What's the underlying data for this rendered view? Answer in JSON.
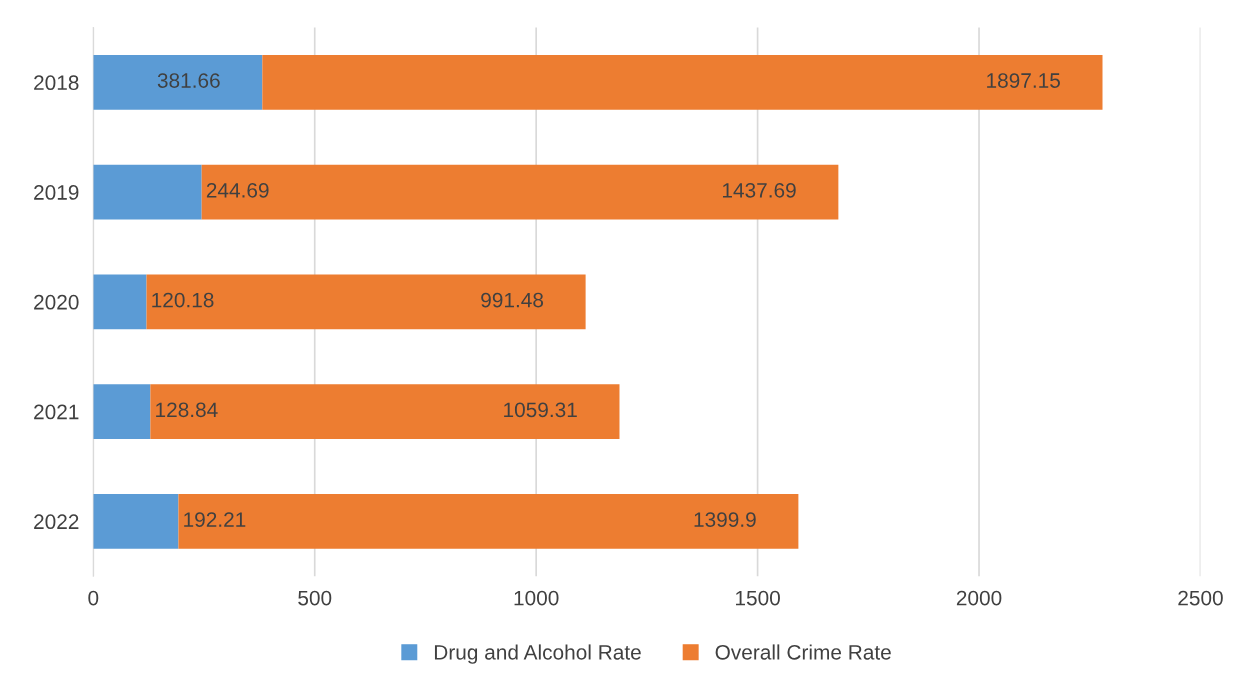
{
  "chart_data": {
    "type": "bar",
    "orientation": "horizontal",
    "stacked": true,
    "categories": [
      "2018",
      "2019",
      "2020",
      "2021",
      "2022"
    ],
    "series": [
      {
        "name": "Drug and Alcohol Rate",
        "color": "#5b9bd5",
        "values": [
          381.66,
          244.69,
          120.18,
          128.84,
          192.21
        ]
      },
      {
        "name": "Overall Crime Rate",
        "color": "#ed7d31",
        "values": [
          1897.15,
          1437.69,
          991.48,
          1059.31,
          1399.9
        ]
      }
    ],
    "xlim": [
      0,
      2500
    ],
    "xticks": [
      0,
      500,
      1000,
      1500,
      2000,
      2500
    ],
    "grid": "x",
    "legend": "bottom",
    "data_labels": true
  }
}
